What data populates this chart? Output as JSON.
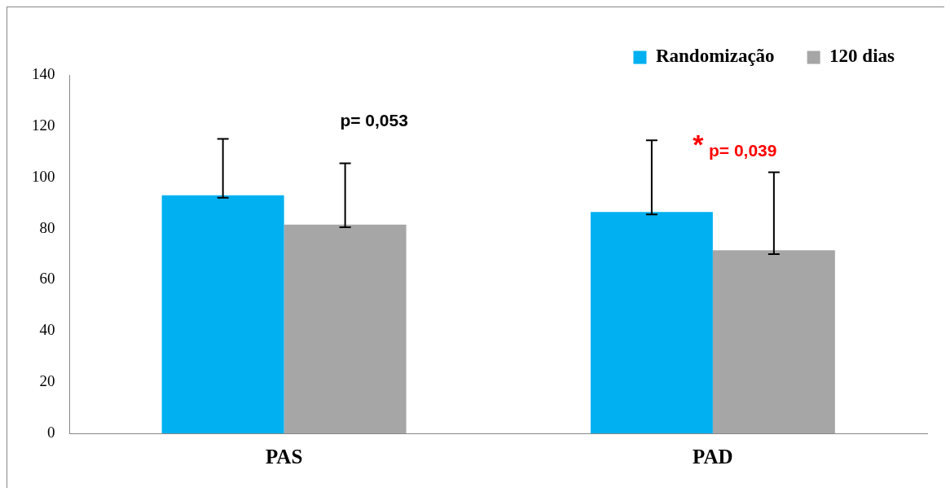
{
  "chart_data": {
    "type": "bar",
    "categories": [
      "PAS",
      "PAD"
    ],
    "series": [
      {
        "name": "Randomização",
        "color": "#00b0f0",
        "values": [
          93,
          86.5
        ],
        "errors": [
          [
            92,
            115
          ],
          [
            85.5,
            114.5
          ]
        ]
      },
      {
        "name": "120 dias",
        "color": "#a6a6a6",
        "values": [
          81.5,
          71.5
        ],
        "errors": [
          [
            80.5,
            105.5
          ],
          [
            70,
            102
          ]
        ]
      }
    ],
    "ylim": [
      0,
      140
    ],
    "yticks": [
      0,
      20,
      40,
      60,
      80,
      100,
      120,
      140
    ],
    "grid": false,
    "legend": "top right",
    "annotations": [
      "p= 0,053",
      "*",
      "p= 0,039"
    ]
  }
}
